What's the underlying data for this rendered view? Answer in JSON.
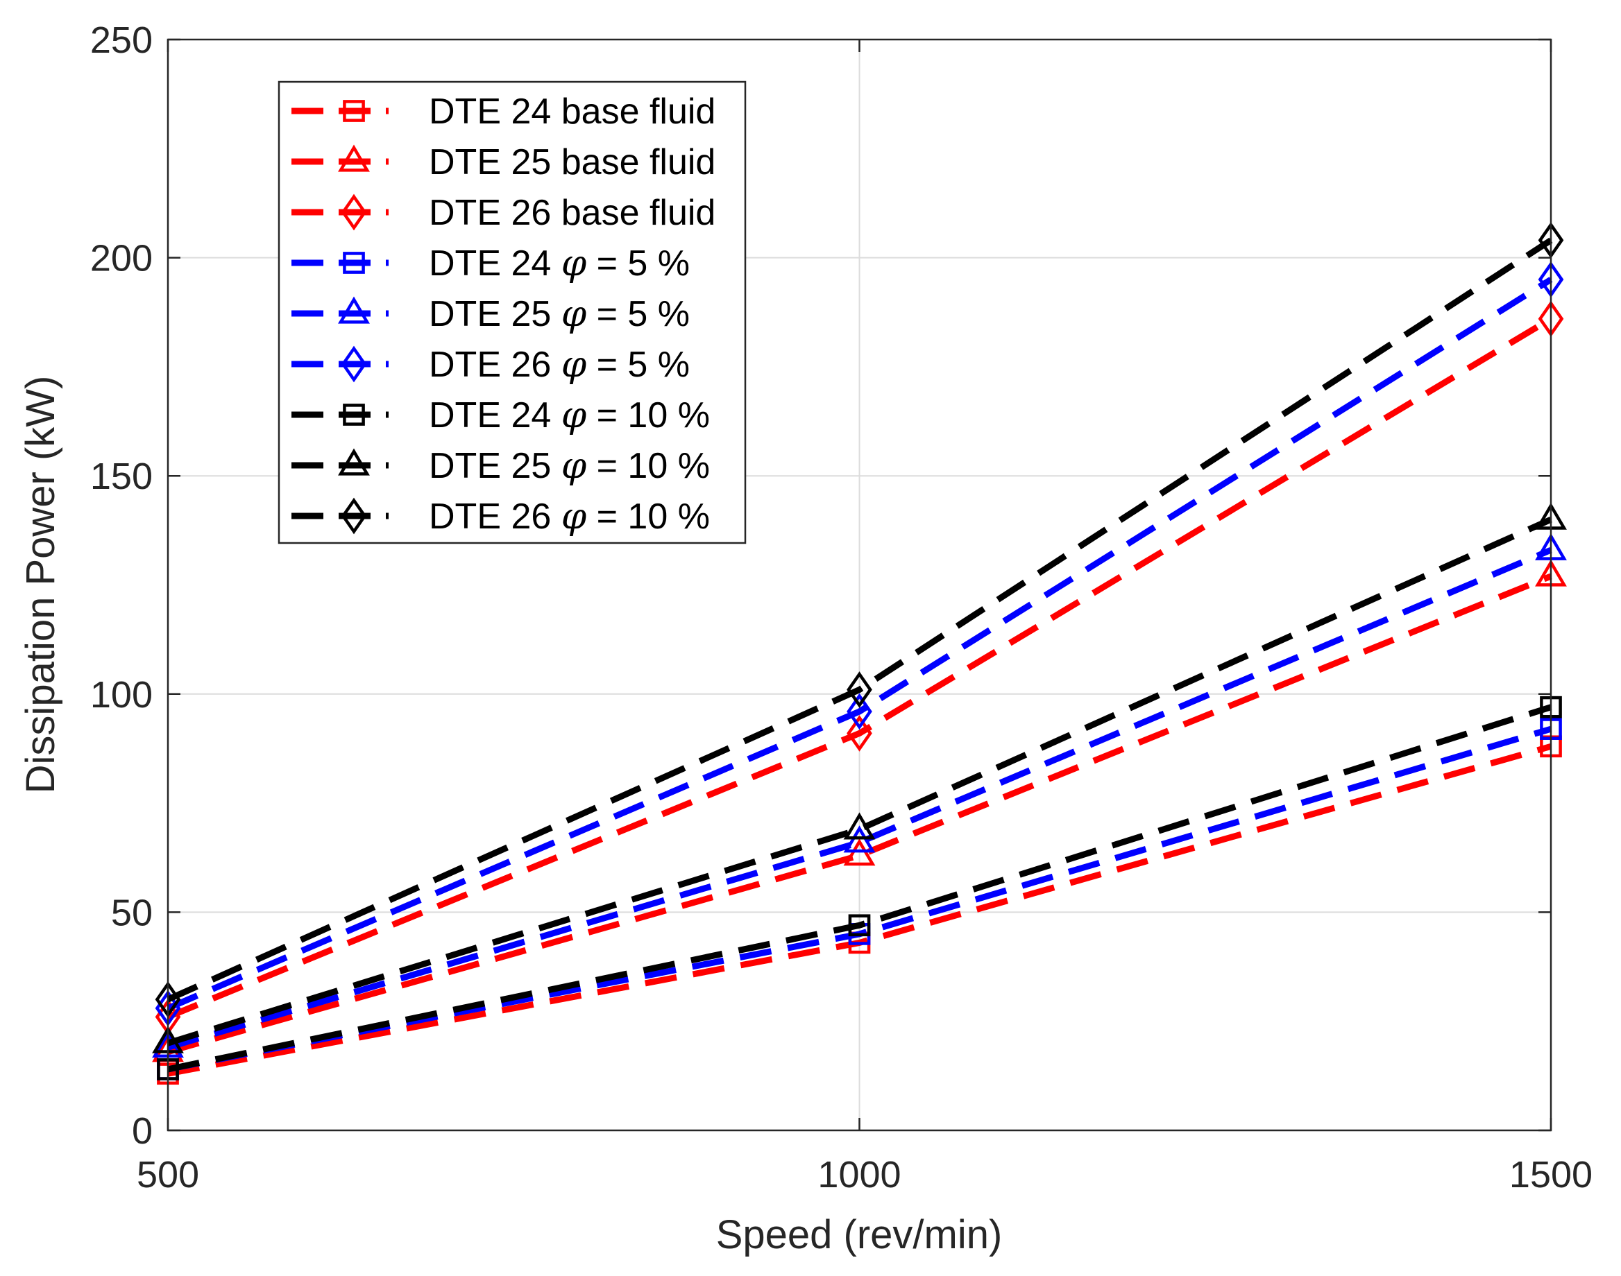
{
  "chart_data": {
    "type": "line",
    "title": "",
    "xlabel": "Speed (rev/min)",
    "ylabel": "Dissipation Power (kW)",
    "xlim": [
      500,
      1500
    ],
    "ylim": [
      0,
      250
    ],
    "x": [
      500,
      1000,
      1500
    ],
    "xticks": [
      500,
      1000,
      1500
    ],
    "xtick_labels": [
      "500",
      "1000",
      "1500"
    ],
    "yticks": [
      0,
      50,
      100,
      150,
      200,
      250
    ],
    "ytick_labels": [
      "0",
      "50",
      "100",
      "150",
      "200",
      "250"
    ],
    "grid": true,
    "legend_position": "top-left",
    "colors": {
      "base": "#ff0000",
      "phi5": "#0000ff",
      "phi10": "#000000",
      "grid": "#dcdcdc",
      "axis": "#262626"
    },
    "series": [
      {
        "name": "DTE 24 base fluid",
        "prefix": "DTE 24 base fluid",
        "phi_symbol": "",
        "suffix": "",
        "color": "#ff0000",
        "marker": "square",
        "values": [
          13,
          43,
          88
        ]
      },
      {
        "name": "DTE 25 base fluid",
        "prefix": "DTE 25 base fluid",
        "phi_symbol": "",
        "suffix": "",
        "color": "#ff0000",
        "marker": "triangle",
        "values": [
          18,
          63,
          127
        ]
      },
      {
        "name": "DTE 26 base fluid",
        "prefix": "DTE 26 base fluid",
        "phi_symbol": "",
        "suffix": "",
        "color": "#ff0000",
        "marker": "diamond",
        "values": [
          26,
          91,
          186
        ]
      },
      {
        "name": "DTE 24 φ = 5 %",
        "prefix": "DTE 24 ",
        "phi_symbol": "φ",
        "suffix": " = 5 %",
        "color": "#0000ff",
        "marker": "square",
        "values": [
          14,
          45,
          92
        ]
      },
      {
        "name": "DTE 25 φ = 5 %",
        "prefix": "DTE 25 ",
        "phi_symbol": "φ",
        "suffix": " = 5 %",
        "color": "#0000ff",
        "marker": "triangle",
        "values": [
          19,
          66,
          133
        ]
      },
      {
        "name": "DTE 26 φ = 5 %",
        "prefix": "DTE 26 ",
        "phi_symbol": "φ",
        "suffix": " = 5 %",
        "color": "#0000ff",
        "marker": "diamond",
        "values": [
          28,
          96,
          195
        ]
      },
      {
        "name": "DTE 24 φ = 10 %",
        "prefix": "DTE 24 ",
        "phi_symbol": "φ",
        "suffix": " = 10 %",
        "color": "#000000",
        "marker": "square",
        "values": [
          14,
          47,
          97
        ]
      },
      {
        "name": "DTE 25 φ = 10 %",
        "prefix": "DTE 25 ",
        "phi_symbol": "φ",
        "suffix": " = 10 %",
        "color": "#000000",
        "marker": "triangle",
        "values": [
          20,
          69,
          140
        ]
      },
      {
        "name": "DTE 26 φ = 10 %",
        "prefix": "DTE 26 ",
        "phi_symbol": "φ",
        "suffix": " = 10 %",
        "color": "#000000",
        "marker": "diamond",
        "values": [
          30,
          101,
          204
        ]
      }
    ]
  }
}
